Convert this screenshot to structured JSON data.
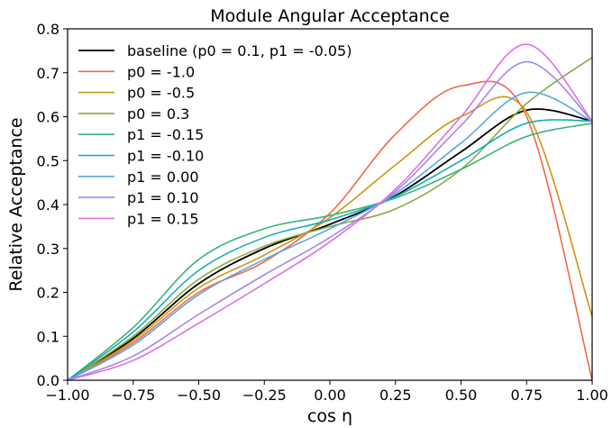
{
  "chart_data": {
    "type": "line",
    "title": "Module Angular Acceptance",
    "xlabel": "cos η",
    "ylabel": "Relative Acceptance",
    "xlim": [
      -1.0,
      1.0
    ],
    "ylim": [
      0.0,
      0.8
    ],
    "xticks": [
      -1.0,
      -0.75,
      -0.5,
      -0.25,
      0.0,
      0.25,
      0.5,
      0.75,
      1.0
    ],
    "xtick_labels": [
      "−1.00",
      "−0.75",
      "−0.50",
      "−0.25",
      "0.00",
      "0.25",
      "0.50",
      "0.75",
      "1.00"
    ],
    "yticks": [
      0.0,
      0.1,
      0.2,
      0.3,
      0.4,
      0.5,
      0.6,
      0.7,
      0.8
    ],
    "ytick_labels": [
      "0.0",
      "0.1",
      "0.2",
      "0.3",
      "0.4",
      "0.5",
      "0.6",
      "0.7",
      "0.8"
    ],
    "grid": false,
    "legend_position": "upper-left",
    "x": [
      -1.0,
      -0.75,
      -0.5,
      -0.25,
      0.0,
      0.25,
      0.5,
      0.75,
      1.0
    ],
    "series": [
      {
        "name": "baseline (p0 = 0.1, p1 = -0.05)",
        "color": "#000000",
        "values": [
          0.0,
          0.095,
          0.22,
          0.3,
          0.355,
          0.42,
          0.52,
          0.615,
          0.59
        ]
      },
      {
        "name": "p0 = -1.0",
        "color": "#ee6a4b",
        "values": [
          0.0,
          0.085,
          0.2,
          0.27,
          0.38,
          0.56,
          0.67,
          0.6,
          0.0
        ]
      },
      {
        "name": "p0 = -0.5",
        "color": "#cc9612",
        "values": [
          0.0,
          0.09,
          0.21,
          0.285,
          0.37,
          0.49,
          0.6,
          0.61,
          0.145
        ]
      },
      {
        "name": "p0 = 0.3",
        "color": "#88aa3f",
        "values": [
          0.0,
          0.1,
          0.23,
          0.305,
          0.35,
          0.39,
          0.48,
          0.63,
          0.735
        ]
      },
      {
        "name": "p1 = -0.15",
        "color": "#3bb37a",
        "values": [
          0.0,
          0.12,
          0.275,
          0.345,
          0.375,
          0.415,
          0.48,
          0.555,
          0.585
        ]
      },
      {
        "name": "p1 = -0.10",
        "color": "#17aeb0",
        "values": [
          0.0,
          0.11,
          0.25,
          0.325,
          0.365,
          0.418,
          0.5,
          0.585,
          0.59
        ]
      },
      {
        "name": "p1 = 0.00",
        "color": "#59a6e5",
        "values": [
          0.0,
          0.08,
          0.195,
          0.275,
          0.345,
          0.425,
          0.54,
          0.655,
          0.59
        ]
      },
      {
        "name": "p1 = 0.10",
        "color": "#a586e6",
        "values": [
          0.0,
          0.055,
          0.15,
          0.24,
          0.325,
          0.43,
          0.58,
          0.725,
          0.59
        ]
      },
      {
        "name": "p1 = 0.15",
        "color": "#de6de9",
        "values": [
          0.0,
          0.045,
          0.13,
          0.22,
          0.315,
          0.435,
          0.6,
          0.765,
          0.59
        ]
      }
    ]
  }
}
